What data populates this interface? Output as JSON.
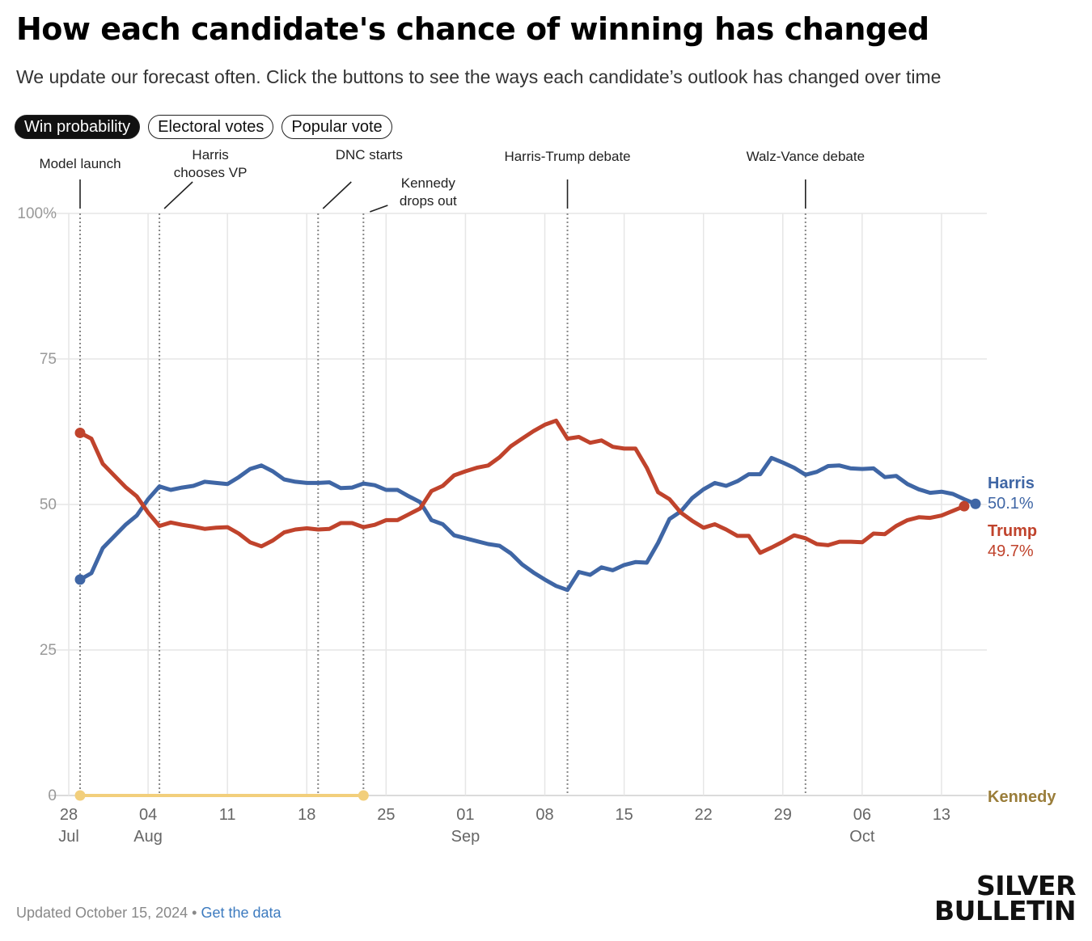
{
  "header": {
    "title": "How each candidate's chance of winning has changed",
    "subtitle": "We update our forecast often. Click the buttons to see the ways each candidate’s outlook has changed over time"
  },
  "tabs": [
    {
      "label": "Win probability",
      "active": true
    },
    {
      "label": "Electoral votes",
      "active": false
    },
    {
      "label": "Popular vote",
      "active": false
    }
  ],
  "footer": {
    "updated": "Updated October 15, 2024",
    "separator": " • ",
    "link": "Get the data"
  },
  "logo": {
    "line1": "SILVER",
    "line2": "BULLETIN"
  },
  "chart_data": {
    "type": "line",
    "ylim": [
      0,
      100
    ],
    "yticks": [
      {
        "value": 0,
        "label": "0"
      },
      {
        "value": 25,
        "label": "25"
      },
      {
        "value": 50,
        "label": "50"
      },
      {
        "value": 75,
        "label": "75"
      },
      {
        "value": 100,
        "label": "100%"
      }
    ],
    "xlim": [
      "2024-07-28",
      "2024-10-17"
    ],
    "xticks": [
      {
        "date": "2024-07-28",
        "day": "28",
        "month": "Jul"
      },
      {
        "date": "2024-08-04",
        "day": "04",
        "month": "Aug"
      },
      {
        "date": "2024-08-11",
        "day": "11",
        "month": ""
      },
      {
        "date": "2024-08-18",
        "day": "18",
        "month": ""
      },
      {
        "date": "2024-08-25",
        "day": "25",
        "month": ""
      },
      {
        "date": "2024-09-01",
        "day": "01",
        "month": "Sep"
      },
      {
        "date": "2024-09-08",
        "day": "08",
        "month": ""
      },
      {
        "date": "2024-09-15",
        "day": "15",
        "month": ""
      },
      {
        "date": "2024-09-22",
        "day": "22",
        "month": ""
      },
      {
        "date": "2024-09-29",
        "day": "29",
        "month": ""
      },
      {
        "date": "2024-10-06",
        "day": "06",
        "month": "Oct"
      },
      {
        "date": "2024-10-13",
        "day": "13",
        "month": ""
      }
    ],
    "grid": true,
    "events": [
      {
        "date": "2024-07-29",
        "label": [
          "Model launch"
        ],
        "connector": "straight"
      },
      {
        "date": "2024-08-05",
        "label": [
          "Harris",
          "chooses VP"
        ],
        "connector": "diagonal"
      },
      {
        "date": "2024-08-19",
        "label": [
          "DNC starts"
        ],
        "connector": "diagonal"
      },
      {
        "date": "2024-08-23",
        "label": [
          "Kennedy",
          "drops out"
        ],
        "connector": "short"
      },
      {
        "date": "2024-09-10",
        "label": [
          "Harris-Trump debate"
        ],
        "connector": "straight"
      },
      {
        "date": "2024-10-01",
        "label": [
          "Walz-Vance debate"
        ],
        "connector": "straight"
      }
    ],
    "series": [
      {
        "name": "Harris",
        "color": "#3f66a5",
        "end_label": "50.1%",
        "points": [
          [
            "2024-07-29",
            37.1
          ],
          [
            "2024-07-30",
            38.2
          ],
          [
            "2024-07-31",
            42.5
          ],
          [
            "2024-08-01",
            44.5
          ],
          [
            "2024-08-02",
            46.5
          ],
          [
            "2024-08-03",
            48.1
          ],
          [
            "2024-08-04",
            50.9
          ],
          [
            "2024-08-05",
            53.1
          ],
          [
            "2024-08-06",
            52.5
          ],
          [
            "2024-08-07",
            52.9
          ],
          [
            "2024-08-08",
            53.2
          ],
          [
            "2024-08-09",
            53.9
          ],
          [
            "2024-08-10",
            53.7
          ],
          [
            "2024-08-11",
            53.5
          ],
          [
            "2024-08-12",
            54.7
          ],
          [
            "2024-08-13",
            56.1
          ],
          [
            "2024-08-14",
            56.7
          ],
          [
            "2024-08-15",
            55.7
          ],
          [
            "2024-08-16",
            54.3
          ],
          [
            "2024-08-17",
            53.9
          ],
          [
            "2024-08-18",
            53.7
          ],
          [
            "2024-08-19",
            53.7
          ],
          [
            "2024-08-20",
            53.8
          ],
          [
            "2024-08-21",
            52.8
          ],
          [
            "2024-08-22",
            52.9
          ],
          [
            "2024-08-23",
            53.6
          ],
          [
            "2024-08-24",
            53.3
          ],
          [
            "2024-08-25",
            52.5
          ],
          [
            "2024-08-26",
            52.5
          ],
          [
            "2024-08-27",
            51.4
          ],
          [
            "2024-08-28",
            50.4
          ],
          [
            "2024-08-29",
            47.3
          ],
          [
            "2024-08-30",
            46.6
          ],
          [
            "2024-08-31",
            44.7
          ],
          [
            "2024-09-01",
            44.2
          ],
          [
            "2024-09-02",
            43.7
          ],
          [
            "2024-09-03",
            43.2
          ],
          [
            "2024-09-04",
            42.9
          ],
          [
            "2024-09-05",
            41.6
          ],
          [
            "2024-09-06",
            39.7
          ],
          [
            "2024-09-07",
            38.3
          ],
          [
            "2024-09-08",
            37.1
          ],
          [
            "2024-09-09",
            36.0
          ],
          [
            "2024-09-10",
            35.3
          ],
          [
            "2024-09-11",
            38.4
          ],
          [
            "2024-09-12",
            37.9
          ],
          [
            "2024-09-13",
            39.2
          ],
          [
            "2024-09-14",
            38.7
          ],
          [
            "2024-09-15",
            39.6
          ],
          [
            "2024-09-16",
            40.1
          ],
          [
            "2024-09-17",
            40.0
          ],
          [
            "2024-09-18",
            43.4
          ],
          [
            "2024-09-19",
            47.5
          ],
          [
            "2024-09-20",
            48.8
          ],
          [
            "2024-09-21",
            51.1
          ],
          [
            "2024-09-22",
            52.6
          ],
          [
            "2024-09-23",
            53.7
          ],
          [
            "2024-09-24",
            53.2
          ],
          [
            "2024-09-25",
            54.0
          ],
          [
            "2024-09-26",
            55.2
          ],
          [
            "2024-09-27",
            55.2
          ],
          [
            "2024-09-28",
            58.0
          ],
          [
            "2024-09-29",
            57.2
          ],
          [
            "2024-09-30",
            56.3
          ],
          [
            "2024-10-01",
            55.1
          ],
          [
            "2024-10-02",
            55.6
          ],
          [
            "2024-10-03",
            56.6
          ],
          [
            "2024-10-04",
            56.7
          ],
          [
            "2024-10-05",
            56.2
          ],
          [
            "2024-10-06",
            56.1
          ],
          [
            "2024-10-07",
            56.2
          ],
          [
            "2024-10-08",
            54.7
          ],
          [
            "2024-10-09",
            54.9
          ],
          [
            "2024-10-10",
            53.5
          ],
          [
            "2024-10-11",
            52.6
          ],
          [
            "2024-10-12",
            52.0
          ],
          [
            "2024-10-13",
            52.2
          ],
          [
            "2024-10-14",
            51.8
          ],
          [
            "2024-10-15",
            50.9
          ],
          [
            "2024-10-16",
            50.1
          ]
        ]
      },
      {
        "name": "Trump",
        "color": "#c0432c",
        "end_label": "49.7%",
        "points": [
          [
            "2024-07-29",
            62.3
          ],
          [
            "2024-07-30",
            61.3
          ],
          [
            "2024-07-31",
            57.0
          ],
          [
            "2024-08-01",
            55.0
          ],
          [
            "2024-08-02",
            53.0
          ],
          [
            "2024-08-03",
            51.4
          ],
          [
            "2024-08-04",
            48.6
          ],
          [
            "2024-08-05",
            46.3
          ],
          [
            "2024-08-06",
            46.9
          ],
          [
            "2024-08-07",
            46.5
          ],
          [
            "2024-08-08",
            46.2
          ],
          [
            "2024-08-09",
            45.8
          ],
          [
            "2024-08-10",
            46.0
          ],
          [
            "2024-08-11",
            46.1
          ],
          [
            "2024-08-12",
            45.0
          ],
          [
            "2024-08-13",
            43.5
          ],
          [
            "2024-08-14",
            42.8
          ],
          [
            "2024-08-15",
            43.8
          ],
          [
            "2024-08-16",
            45.2
          ],
          [
            "2024-08-17",
            45.7
          ],
          [
            "2024-08-18",
            45.9
          ],
          [
            "2024-08-19",
            45.7
          ],
          [
            "2024-08-20",
            45.8
          ],
          [
            "2024-08-21",
            46.8
          ],
          [
            "2024-08-22",
            46.8
          ],
          [
            "2024-08-23",
            46.1
          ],
          [
            "2024-08-24",
            46.5
          ],
          [
            "2024-08-25",
            47.3
          ],
          [
            "2024-08-26",
            47.3
          ],
          [
            "2024-08-27",
            48.3
          ],
          [
            "2024-08-28",
            49.3
          ],
          [
            "2024-08-29",
            52.3
          ],
          [
            "2024-08-30",
            53.2
          ],
          [
            "2024-08-31",
            55.0
          ],
          [
            "2024-09-01",
            55.7
          ],
          [
            "2024-09-02",
            56.3
          ],
          [
            "2024-09-03",
            56.7
          ],
          [
            "2024-09-04",
            58.1
          ],
          [
            "2024-09-05",
            60.0
          ],
          [
            "2024-09-06",
            61.3
          ],
          [
            "2024-09-07",
            62.6
          ],
          [
            "2024-09-08",
            63.7
          ],
          [
            "2024-09-09",
            64.4
          ],
          [
            "2024-09-10",
            61.3
          ],
          [
            "2024-09-11",
            61.6
          ],
          [
            "2024-09-12",
            60.6
          ],
          [
            "2024-09-13",
            61.0
          ],
          [
            "2024-09-14",
            59.9
          ],
          [
            "2024-09-15",
            59.6
          ],
          [
            "2024-09-16",
            59.6
          ],
          [
            "2024-09-17",
            56.3
          ],
          [
            "2024-09-18",
            52.1
          ],
          [
            "2024-09-19",
            50.9
          ],
          [
            "2024-09-20",
            48.6
          ],
          [
            "2024-09-21",
            47.2
          ],
          [
            "2024-09-22",
            46.0
          ],
          [
            "2024-09-23",
            46.6
          ],
          [
            "2024-09-24",
            45.7
          ],
          [
            "2024-09-25",
            44.6
          ],
          [
            "2024-09-26",
            44.6
          ],
          [
            "2024-09-27",
            41.7
          ],
          [
            "2024-09-28",
            42.6
          ],
          [
            "2024-09-29",
            43.6
          ],
          [
            "2024-09-30",
            44.7
          ],
          [
            "2024-10-01",
            44.2
          ],
          [
            "2024-10-02",
            43.2
          ],
          [
            "2024-10-03",
            43.0
          ],
          [
            "2024-10-04",
            43.6
          ],
          [
            "2024-10-05",
            43.6
          ],
          [
            "2024-10-06",
            43.5
          ],
          [
            "2024-10-07",
            45.0
          ],
          [
            "2024-10-08",
            44.9
          ],
          [
            "2024-10-09",
            46.3
          ],
          [
            "2024-10-10",
            47.3
          ],
          [
            "2024-10-11",
            47.8
          ],
          [
            "2024-10-12",
            47.7
          ],
          [
            "2024-10-13",
            48.1
          ],
          [
            "2024-10-14",
            48.9
          ],
          [
            "2024-10-15",
            49.7
          ]
        ]
      },
      {
        "name": "Kennedy",
        "color": "#f2cf7c",
        "label_color": "#9a7d3a",
        "end_label": "",
        "points": [
          [
            "2024-07-29",
            0
          ],
          [
            "2024-08-23",
            0
          ]
        ]
      }
    ]
  }
}
